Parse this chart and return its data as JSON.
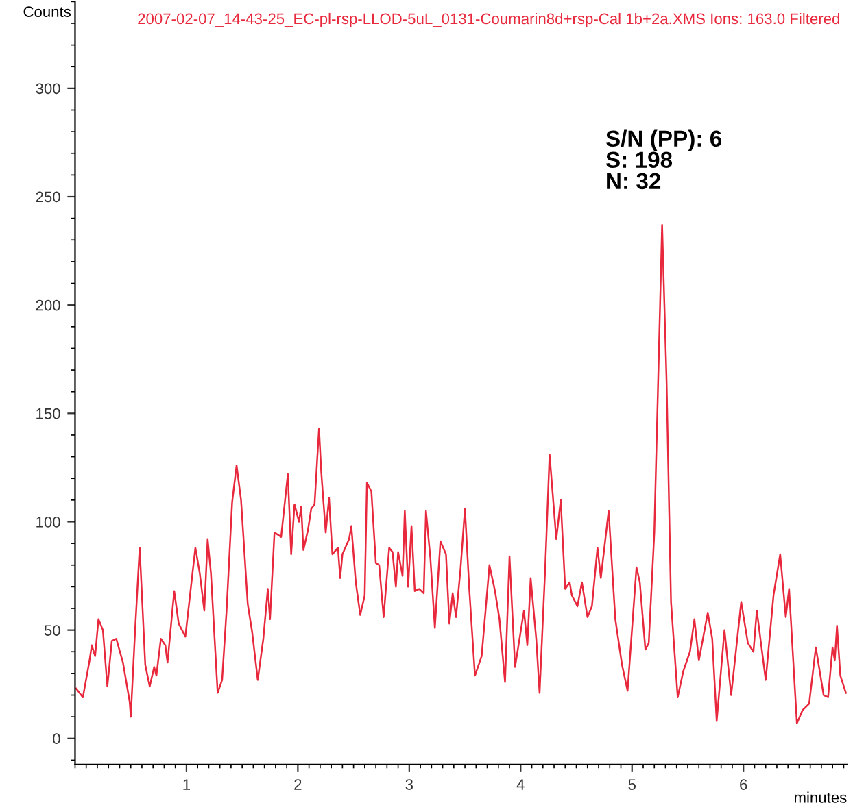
{
  "chart_data": {
    "type": "line",
    "title": "2007-02-07_14-43-25_EC-pl-rsp-LLOD-5uL_0131-Coumarin8d+rsp-Cal 1b+2a.XMS Ions: 163.0 Filtered",
    "xlabel": "minutes",
    "ylabel": "Counts",
    "annotations": [
      "S/N (PP): 6\nS: 198\nN: 32"
    ],
    "xlim": [
      0,
      6.93
    ],
    "ylim": [
      -12,
      340
    ],
    "xticks": [
      1,
      2,
      3,
      4,
      5,
      6
    ],
    "yticks": [
      0,
      50,
      100,
      150,
      200,
      250,
      300
    ],
    "grid": false,
    "legend": false,
    "marker": "none",
    "line_style": "solid",
    "series": [
      {
        "color": "#e8283c",
        "x": [
          0.01,
          0.07,
          0.13,
          0.15,
          0.18,
          0.21,
          0.25,
          0.29,
          0.33,
          0.37,
          0.43,
          0.49,
          0.5,
          0.54,
          0.58,
          0.63,
          0.67,
          0.71,
          0.73,
          0.77,
          0.81,
          0.83,
          0.89,
          0.93,
          0.99,
          1.08,
          1.12,
          1.16,
          1.19,
          1.22,
          1.28,
          1.32,
          1.36,
          1.41,
          1.45,
          1.49,
          1.55,
          1.59,
          1.64,
          1.69,
          1.73,
          1.75,
          1.79,
          1.85,
          1.91,
          1.94,
          1.97,
          2.01,
          2.03,
          2.05,
          2.09,
          2.12,
          2.15,
          2.19,
          2.21,
          2.25,
          2.28,
          2.31,
          2.36,
          2.38,
          2.4,
          2.46,
          2.48,
          2.52,
          2.56,
          2.6,
          2.62,
          2.66,
          2.7,
          2.73,
          2.77,
          2.82,
          2.85,
          2.88,
          2.9,
          2.94,
          2.96,
          2.99,
          3.02,
          3.05,
          3.09,
          3.13,
          3.15,
          3.19,
          3.23,
          3.28,
          3.33,
          3.36,
          3.39,
          3.42,
          3.46,
          3.5,
          3.54,
          3.59,
          3.65,
          3.72,
          3.77,
          3.81,
          3.86,
          3.9,
          3.95,
          4.03,
          4.06,
          4.09,
          4.14,
          4.17,
          4.22,
          4.26,
          4.32,
          4.36,
          4.4,
          4.44,
          4.46,
          4.51,
          4.55,
          4.6,
          4.64,
          4.69,
          4.72,
          4.79,
          4.85,
          4.91,
          4.96,
          5.04,
          5.07,
          5.12,
          5.15,
          5.2,
          5.27,
          5.31,
          5.35,
          5.41,
          5.46,
          5.52,
          5.56,
          5.6,
          5.68,
          5.72,
          5.76,
          5.83,
          5.89,
          5.98,
          6.04,
          6.09,
          6.12,
          6.2,
          6.27,
          6.33,
          6.38,
          6.41,
          6.48,
          6.53,
          6.59,
          6.65,
          6.72,
          6.76,
          6.8,
          6.82,
          6.84,
          6.87,
          6.92
        ],
        "values": [
          23,
          19,
          36,
          43,
          38,
          55,
          50,
          24,
          45,
          46,
          35,
          17,
          10,
          51,
          88,
          34,
          24,
          33,
          29,
          46,
          43,
          35,
          68,
          53,
          47,
          88,
          76,
          59,
          92,
          76,
          21,
          27,
          59,
          109,
          126,
          110,
          62,
          49,
          27,
          46,
          69,
          55,
          95,
          93,
          122,
          85,
          108,
          100,
          107,
          87,
          96,
          106,
          108,
          143,
          123,
          95,
          111,
          85,
          88,
          74,
          85,
          92,
          98,
          72,
          57,
          66,
          118,
          114,
          81,
          80,
          56,
          88,
          86,
          70,
          86,
          75,
          105,
          70,
          98,
          68,
          69,
          67,
          105,
          83,
          51,
          91,
          85,
          53,
          67,
          56,
          78,
          106,
          68,
          29,
          38,
          80,
          68,
          55,
          26,
          84,
          33,
          59,
          43,
          74,
          46,
          21,
          78,
          131,
          92,
          110,
          69,
          72,
          66,
          61,
          72,
          56,
          61,
          88,
          74,
          105,
          55,
          34,
          22,
          79,
          72,
          41,
          44,
          95,
          237,
          165,
          63,
          19,
          31,
          40,
          55,
          36,
          58,
          46,
          8,
          50,
          20,
          63,
          44,
          40,
          59,
          27,
          66,
          85,
          56,
          69,
          7,
          13,
          16,
          42,
          20,
          19,
          42,
          36,
          52,
          29,
          21
        ]
      }
    ]
  }
}
